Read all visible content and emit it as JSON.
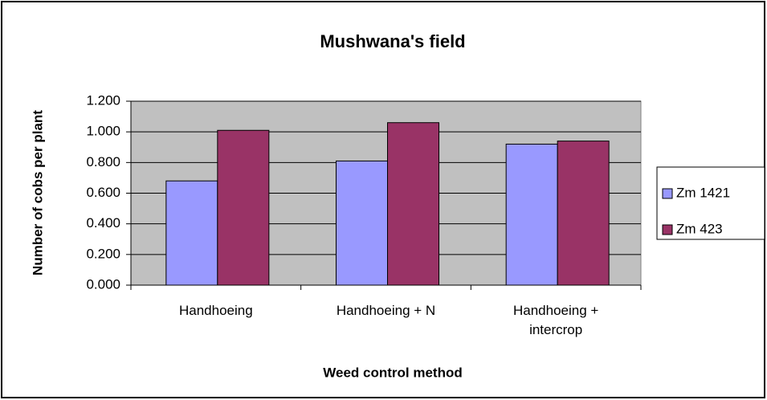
{
  "chart_data": {
    "type": "bar",
    "title": "Mushwana's field",
    "x_label": "Weed control method",
    "y_label": "Number of cobs per plant",
    "categories": [
      "Handhoeing",
      "Handhoeing + N",
      "Handhoeing + intercrop"
    ],
    "series": [
      {
        "name": "Zm 1421",
        "color": "#9999ff",
        "values": [
          0.68,
          0.81,
          0.92
        ]
      },
      {
        "name": "Zm 423",
        "color": "#993366",
        "values": [
          1.01,
          1.06,
          0.94
        ]
      }
    ],
    "ylim": [
      0,
      1.2
    ],
    "yticks": [
      {
        "value": 0,
        "label": "0.000"
      },
      {
        "value": 0.2,
        "label": "0.200"
      },
      {
        "value": 0.4,
        "label": "0.400"
      },
      {
        "value": 0.6,
        "label": "0.600"
      },
      {
        "value": 0.8,
        "label": "0.800"
      },
      {
        "value": 1.0,
        "label": "1.000"
      },
      {
        "value": 1.2,
        "label": "1.200"
      }
    ],
    "grid": true,
    "legend": "right"
  }
}
